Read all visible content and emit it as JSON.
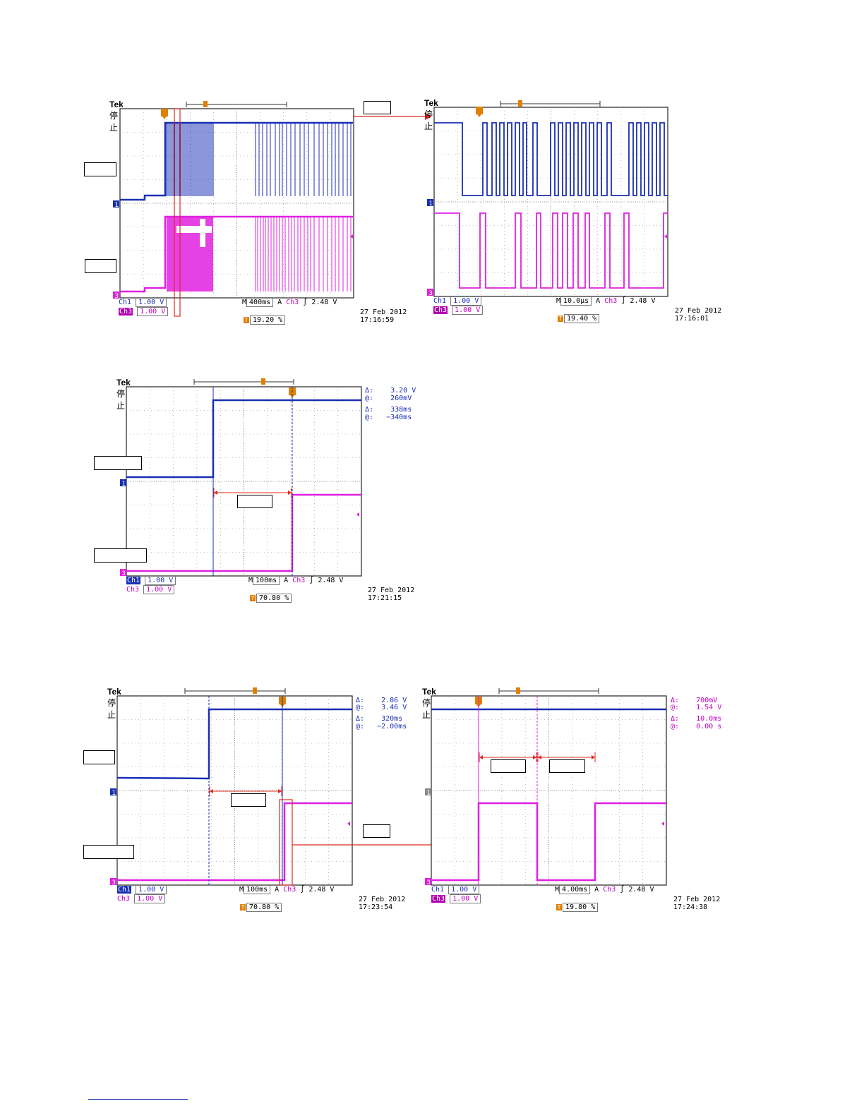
{
  "colors": {
    "ch1": "#1a2fb4",
    "ch3": "#e020e0",
    "marker": "#e0281e",
    "grid": "#888888",
    "trigger": "#e08000"
  },
  "scopes": [
    {
      "id": "s1",
      "brand": "Tek",
      "state": "停止",
      "ch1_label": "Ch1",
      "ch1_scale": "1.00 V",
      "ch3_label": "Ch3",
      "ch3_scale": "1.00 V",
      "timebase": "400ms",
      "trig_src": "Ch3",
      "trig_level": "2.48 V",
      "trig_pos": "19.20 %",
      "date": "27 Feb  2012",
      "time": "17:16:59",
      "ch1_marker": "1",
      "ch3_marker": "3",
      "readouts": []
    },
    {
      "id": "s2",
      "brand": "Tek",
      "state": "停止",
      "ch1_label": "Ch1",
      "ch1_scale": "1.00 V",
      "ch3_label": "Ch3",
      "ch3_scale": "1.00 V",
      "timebase": "10.0µs",
      "trig_src": "Ch3",
      "trig_level": "2.48 V",
      "trig_pos": "19.40 %",
      "date": "27 Feb  2012",
      "time": "17:16:01",
      "ch1_marker": "1",
      "ch3_marker": "3",
      "readouts": []
    },
    {
      "id": "s3",
      "brand": "Tek",
      "state": "停止",
      "ch1_label": "Ch1",
      "ch1_scale": "1.00 V",
      "ch3_label": "Ch3",
      "ch3_scale": "1.00 V",
      "timebase": "100ms",
      "trig_src": "Ch3",
      "trig_level": "2.48 V",
      "trig_pos": "70.80 %",
      "date": "27 Feb  2012",
      "time": "17:21:15",
      "ch1_marker": "1",
      "ch3_marker": "3",
      "readouts": [
        "Δ:    3.20 V",
        "@:    260mV",
        "Δ:    338ms",
        "@:   −340ms"
      ]
    },
    {
      "id": "s4",
      "brand": "Tek",
      "state": "停止",
      "ch1_label": "Ch1",
      "ch1_scale": "1.00 V",
      "ch3_label": "Ch3",
      "ch3_scale": "1.00 V",
      "timebase": "100ms",
      "trig_src": "Ch3",
      "trig_level": "2.48 V",
      "trig_pos": "70.80 %",
      "date": "27 Feb  2012",
      "time": "17:23:54",
      "ch1_marker": "1",
      "ch3_marker": "3",
      "readouts": [
        "Δ:    2.86 V",
        "@:    3.46 V",
        "Δ:    320ms",
        "@:   −2.00ms"
      ]
    },
    {
      "id": "s5",
      "brand": "Tek",
      "state": "停止",
      "ch1_label": "Ch1",
      "ch1_scale": "1.00 V",
      "ch3_label": "Ch3",
      "ch3_scale": "1.00 V",
      "timebase": "4.00ms",
      "trig_src": "Ch3",
      "trig_level": "2.48 V",
      "trig_pos": "19.80 %",
      "date": "27 Feb  2012",
      "time": "17:24:38",
      "ch1_marker": "1",
      "ch3_marker": "3",
      "readouts": [
        "Δ:    700mV",
        "@:    1.54 V",
        "Δ:    10.0ms",
        "@:    0.00 s"
      ]
    }
  ],
  "chart_data": [
    {
      "type": "line",
      "title": "",
      "series": [
        {
          "values": []
        },
        {
          "values": []
        }
      ]
    },
    {
      "type": "line",
      "title": "",
      "series": [
        {
          "values": []
        },
        {
          "values": []
        }
      ]
    },
    {
      "type": "line",
      "title": "",
      "series": [
        {
          "values": []
        },
        {
          "values": []
        }
      ]
    },
    {
      "type": "line",
      "title": "",
      "series": [
        {
          "values": []
        },
        {
          "values": []
        }
      ]
    },
    {
      "type": "line",
      "title": "",
      "series": [
        {
          "values": []
        },
        {
          "values": []
        }
      ]
    }
  ]
}
